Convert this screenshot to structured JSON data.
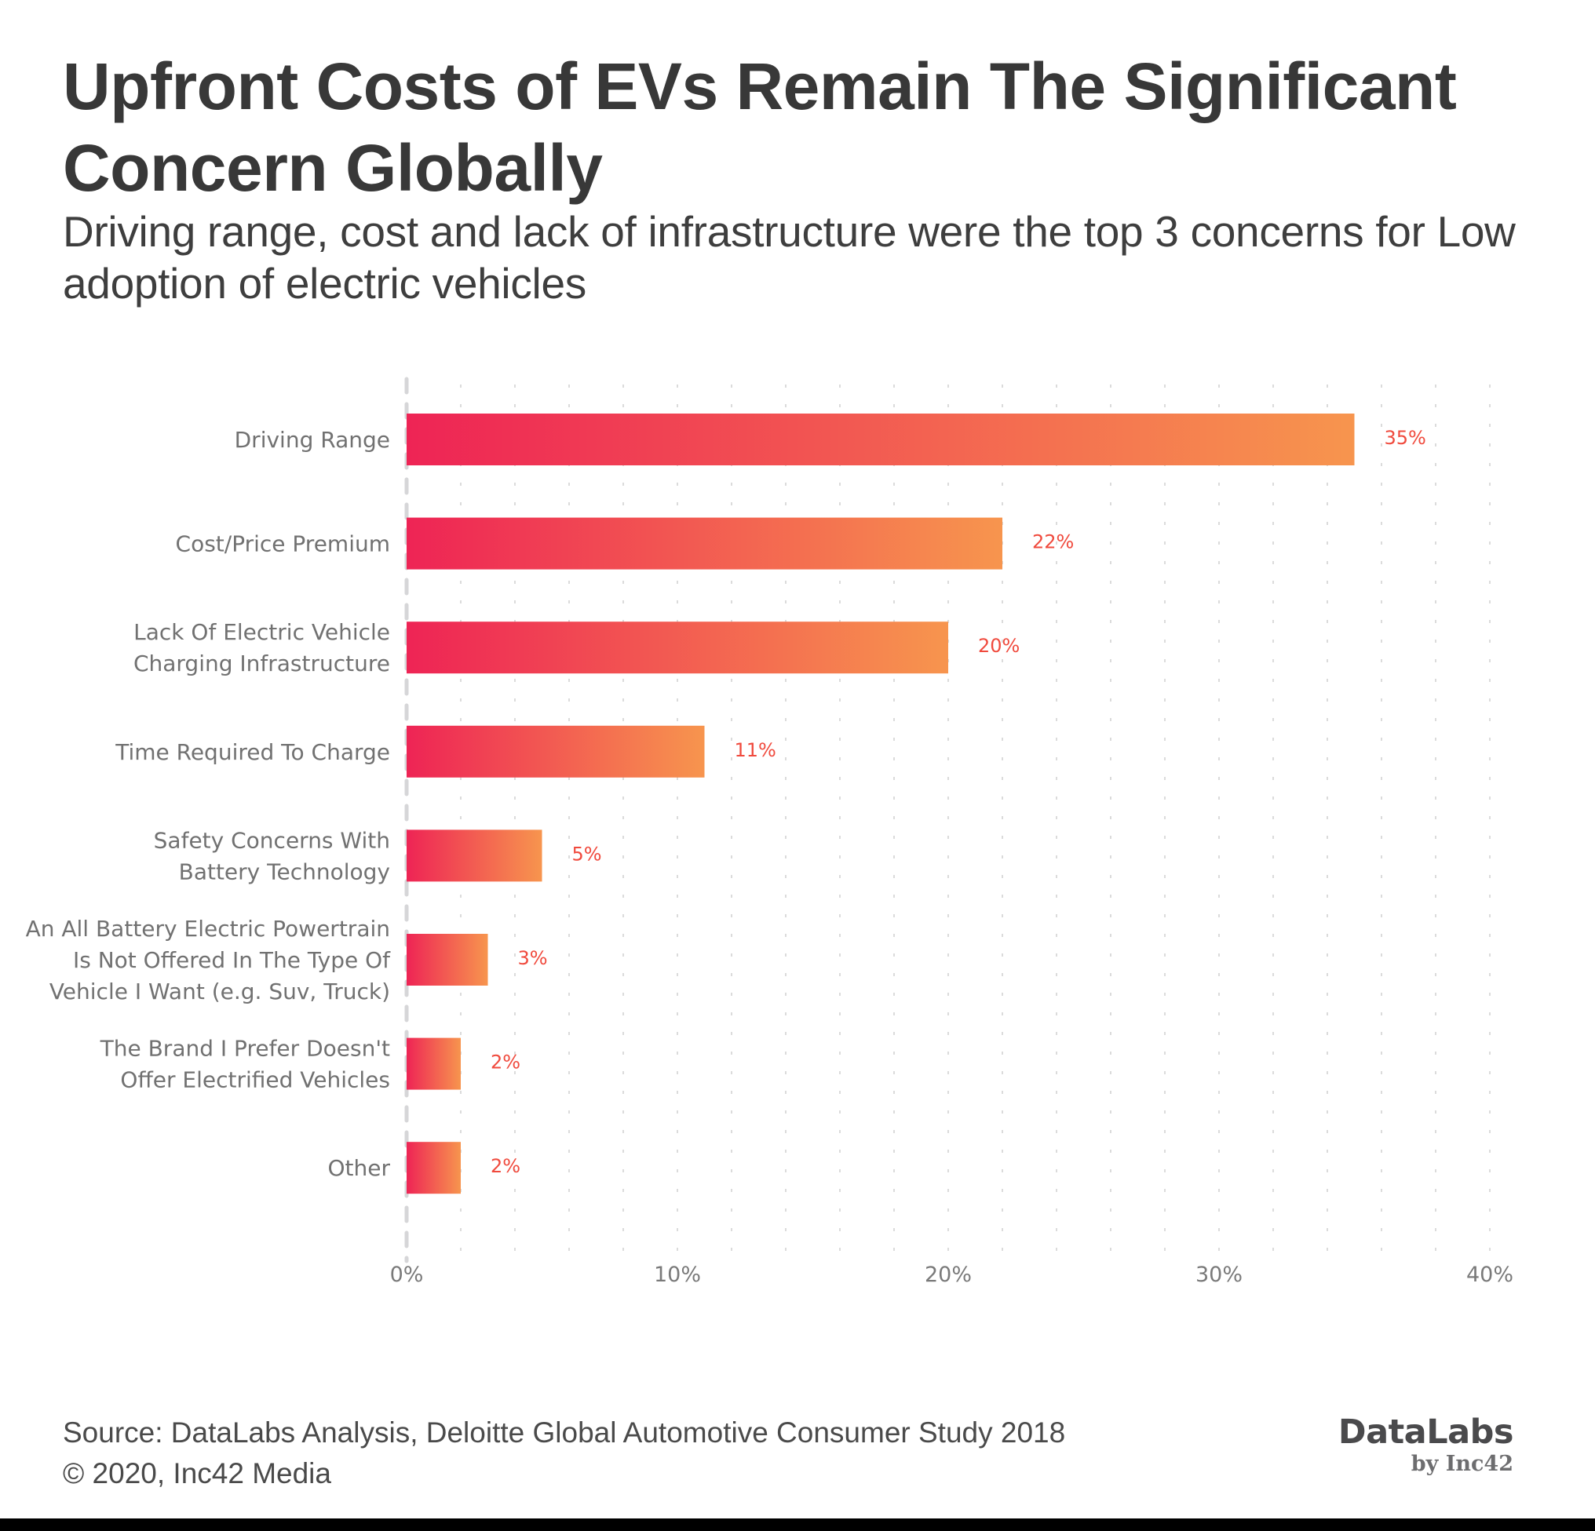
{
  "header": {
    "title": "Upfront Costs of EVs Remain The Significant Concern Globally",
    "subtitle": "Driving range, cost and lack of infrastructure were the top 3 concerns for Low adoption of electric vehicles"
  },
  "chart_data": {
    "type": "bar",
    "orientation": "horizontal",
    "title": "Upfront Costs of EVs Remain The Significant Concern Globally",
    "subtitle": "Driving range, cost and lack of infrastructure were the top 3 concerns for Low adoption of electric vehicles",
    "xlabel": "",
    "ylabel": "",
    "categories": [
      [
        "Driving Range"
      ],
      [
        "Cost/Price Premium"
      ],
      [
        "Lack Of Electric Vehicle",
        "Charging Infrastructure"
      ],
      [
        "Time Required To Charge"
      ],
      [
        "Safety Concerns With",
        "Battery Technology"
      ],
      [
        "An All Battery Electric Powertrain",
        "Is Not Offered In The Type Of",
        "Vehicle I Want (e.g. Suv, Truck)"
      ],
      [
        "The Brand I Prefer Doesn't",
        "Offer Electrified Vehicles"
      ],
      [
        "Other"
      ]
    ],
    "values": [
      35,
      22,
      20,
      11,
      5,
      3,
      2,
      2
    ],
    "value_labels": [
      "35%",
      "22%",
      "20%",
      "11%",
      "5%",
      "3%",
      "2%",
      "2%"
    ],
    "unit": "%",
    "xlim": [
      0,
      40
    ],
    "x_ticks": [
      0,
      10,
      20,
      30,
      40
    ],
    "x_tick_labels": [
      "0%",
      "10%",
      "20%",
      "30%",
      "40%"
    ],
    "minor_grid_step": 2,
    "grid": true,
    "legend": "none",
    "colors": {
      "bar_gradient_start": "#ee2455",
      "bar_gradient_end": "#f7954e",
      "value_label": "#f04a3d",
      "axis": "#d6d6d8",
      "grid": "#cfcfcf"
    }
  },
  "footer": {
    "source": "Source: DataLabs Analysis, Deloitte Global Automotive Consumer Study 2018",
    "copyright": "© 2020, Inc42 Media"
  },
  "logo": {
    "main": "DataLabs",
    "sub": "by Inc42"
  }
}
